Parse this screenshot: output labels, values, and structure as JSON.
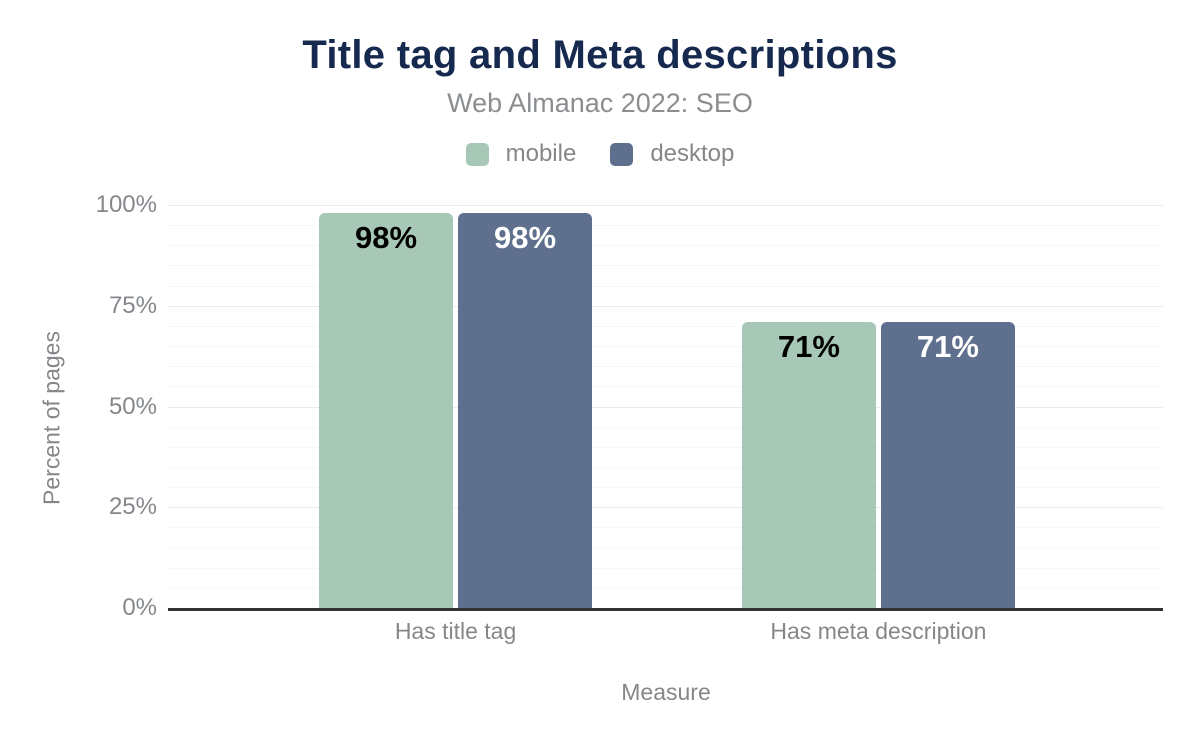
{
  "chart_data": {
    "type": "bar",
    "title": "Title tag and Meta descriptions",
    "subtitle": "Web Almanac 2022: SEO",
    "xlabel": "Measure",
    "ylabel": "Percent of pages",
    "ylim": [
      0,
      100
    ],
    "yticks": [
      {
        "value": 0,
        "label": "0%"
      },
      {
        "value": 25,
        "label": "25%"
      },
      {
        "value": 50,
        "label": "50%"
      },
      {
        "value": 75,
        "label": "75%"
      },
      {
        "value": 100,
        "label": "100%"
      }
    ],
    "grid": {
      "minor_step": 5,
      "major_step": 25
    },
    "legend_position": "top",
    "categories": [
      "Has title tag",
      "Has meta description"
    ],
    "series": [
      {
        "name": "mobile",
        "color": "#a7c8b6",
        "label_color": "#000000",
        "values": [
          98,
          71
        ],
        "value_labels": [
          "98%",
          "71%"
        ]
      },
      {
        "name": "desktop",
        "color": "#5e708e",
        "label_color": "#ffffff",
        "values": [
          98,
          71
        ],
        "value_labels": [
          "98%",
          "71%"
        ]
      }
    ],
    "colors": {
      "title": "#16294e",
      "subtitle": "#8b8e91",
      "axis_text": "#85878a",
      "axis_line": "#333333",
      "grid_major": "#ebebeb",
      "grid_minor": "#f7f7f7",
      "background": "#ffffff"
    }
  }
}
